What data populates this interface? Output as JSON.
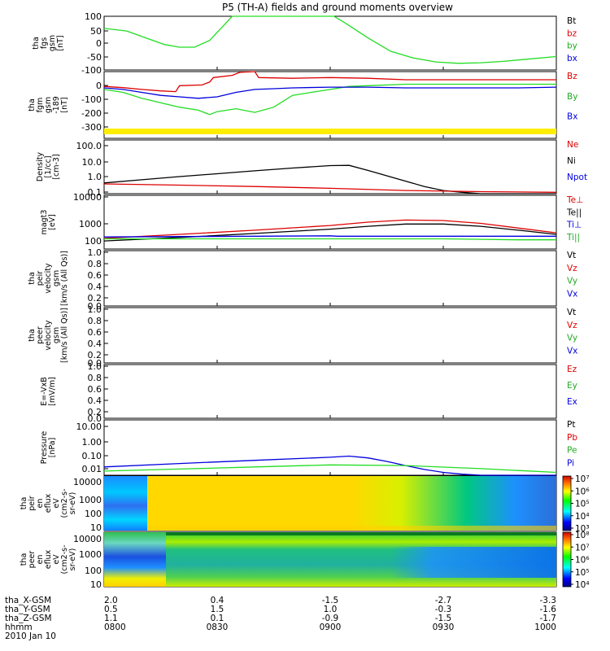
{
  "title": "P5 (TH-A) fields and ground moments overview",
  "colors": {
    "black": "#000000",
    "red": "#dd0000",
    "green": "#22dd22",
    "blue": "#0000dd",
    "yellow": "#ffee00"
  },
  "panels": [
    {
      "id": "fgs",
      "ylabel": [
        "tha",
        "fgs",
        "gsm",
        "[nT]"
      ],
      "yticks": [
        "100",
        "50",
        "0",
        "-50",
        "-100"
      ],
      "legend": [
        {
          "text": "Bt",
          "color": "#000000"
        },
        {
          "text": "bz",
          "color": "#dd0000"
        },
        {
          "text": "by",
          "color": "#22aa22"
        },
        {
          "text": "bx",
          "color": "#0000dd"
        }
      ]
    },
    {
      "id": "fgm",
      "ylabel": [
        "tha",
        "fgm",
        "gsm",
        "-189",
        "[nT]"
      ],
      "yticks": [
        "0",
        "-100",
        "-200",
        "-300"
      ],
      "legend": [
        {
          "text": "Bz",
          "color": "#dd0000"
        },
        {
          "text": "By",
          "color": "#22aa22"
        },
        {
          "text": "Bx",
          "color": "#0000dd"
        }
      ]
    },
    {
      "id": "density",
      "ylabel": [
        "Density",
        "[1/cc]",
        "[cm-3]"
      ],
      "yticks": [
        "100.0",
        "10.0",
        "1.0",
        "0.1"
      ],
      "legend": [
        {
          "text": "Ne",
          "color": "#dd0000"
        },
        {
          "text": "Ni",
          "color": "#000000"
        },
        {
          "text": "Npot",
          "color": "#0000dd"
        }
      ]
    },
    {
      "id": "temp",
      "ylabel": [
        "magt3",
        "[eV]"
      ],
      "yticks": [
        "10000",
        "1000",
        "100"
      ],
      "legend": [
        {
          "text": "Te⊥",
          "color": "#dd0000"
        },
        {
          "text": "Te||",
          "color": "#000000"
        },
        {
          "text": "Ti⊥",
          "color": "#0000dd"
        },
        {
          "text": "Ti||",
          "color": "#22aa22"
        }
      ]
    },
    {
      "id": "peir_vel",
      "ylabel": [
        "tha",
        "peir",
        "velocity",
        "gsm",
        "[km/s (All Qs)]"
      ],
      "yticks": [
        "1.0",
        "0.8",
        "0.6",
        "0.4",
        "0.2",
        "0.0"
      ],
      "legend": [
        {
          "text": "Vt",
          "color": "#000000"
        },
        {
          "text": "Vz",
          "color": "#dd0000"
        },
        {
          "text": "Vy",
          "color": "#22aa22"
        },
        {
          "text": "Vx",
          "color": "#0000dd"
        }
      ]
    },
    {
      "id": "peer_vel",
      "ylabel": [
        "tha",
        "peer",
        "velocity",
        "gsm",
        "[km/s (All Qs)]"
      ],
      "yticks": [
        "1.0",
        "0.8",
        "0.6",
        "0.4",
        "0.2",
        "0.0"
      ],
      "legend": [
        {
          "text": "Vt",
          "color": "#000000"
        },
        {
          "text": "Vz",
          "color": "#dd0000"
        },
        {
          "text": "Vy",
          "color": "#22aa22"
        },
        {
          "text": "Vx",
          "color": "#0000dd"
        }
      ]
    },
    {
      "id": "efield",
      "ylabel": [
        "E=-VxB",
        "[mV/m]"
      ],
      "yticks": [
        "1.0",
        "0.8",
        "0.6",
        "0.4",
        "0.2",
        "0.0"
      ],
      "legend": [
        {
          "text": "Ez",
          "color": "#dd0000"
        },
        {
          "text": "Ey",
          "color": "#22aa22"
        },
        {
          "text": "Ex",
          "color": "#0000dd"
        }
      ]
    },
    {
      "id": "pressure",
      "ylabel": [
        "Pressure",
        "[nPa]"
      ],
      "yticks": [
        "10.00",
        "1.00",
        "0.10",
        "0.01"
      ],
      "legend": [
        {
          "text": "Pt",
          "color": "#000000"
        },
        {
          "text": "Pb",
          "color": "#dd0000"
        },
        {
          "text": "Pe",
          "color": "#22aa22"
        },
        {
          "text": "Pi",
          "color": "#0000dd"
        }
      ]
    },
    {
      "id": "peir_eflux",
      "ylabel": [
        "tha",
        "peir",
        "en",
        "eflux",
        "eV",
        "(cm2-s-",
        "sr-eV)"
      ],
      "yticks": [
        "10000",
        "1000",
        "100",
        "10"
      ],
      "cbar_ticks": [
        "10⁷",
        "10⁶",
        "10⁵",
        "10⁴",
        "10³"
      ]
    },
    {
      "id": "peer_eflux",
      "ylabel": [
        "tha",
        "peer",
        "en",
        "eflux",
        "eV",
        "(cm2-s-",
        "sr-eV)"
      ],
      "yticks": [
        "10000",
        "1000",
        "100",
        "10"
      ],
      "cbar_ticks": [
        "10⁸",
        "10⁷",
        "10⁶",
        "10⁵",
        "10⁴"
      ]
    }
  ],
  "footer": {
    "rows": [
      {
        "label": "tha_X-GSM",
        "values": [
          "2.0",
          "0.4",
          "-1.5",
          "-2.7",
          "-3.3"
        ]
      },
      {
        "label": "tha_Y-GSM",
        "values": [
          "0.5",
          "1.5",
          "1.0",
          "-0.3",
          "-1.6"
        ]
      },
      {
        "label": "tha_Z-GSM",
        "values": [
          "1.1",
          "0.1",
          "-0.9",
          "-1.5",
          "-1.7"
        ]
      },
      {
        "label": "hhmm",
        "values": [
          "0800",
          "0830",
          "0900",
          "0930",
          "1000"
        ]
      }
    ],
    "date": "2010 Jan 10"
  },
  "chart_data": [
    {
      "type": "line",
      "panel": "fgs",
      "ylim": [
        -100,
        100
      ],
      "xlim": [
        0,
        120
      ],
      "xunits": "minutes after 0800",
      "series": [
        {
          "name": "by",
          "color": "#22dd22",
          "x": [
            0,
            6,
            12,
            16,
            20,
            24,
            28,
            32,
            34,
            61,
            64,
            70,
            76,
            82,
            88,
            94,
            100,
            106,
            112,
            120
          ],
          "y": [
            55,
            45,
            15,
            -5,
            -15,
            -15,
            10,
            70,
            110,
            110,
            75,
            20,
            -30,
            -55,
            -70,
            -75,
            -73,
            -68,
            -60,
            -50
          ]
        }
      ]
    },
    {
      "type": "line",
      "panel": "fgm",
      "ylim": [
        -350,
        100
      ],
      "xlim": [
        0,
        120
      ],
      "series": [
        {
          "name": "Bz",
          "color": "#dd0000",
          "x": [
            0,
            5,
            10,
            15,
            19,
            20,
            26,
            28,
            29,
            34,
            36,
            40,
            41,
            50,
            60,
            70,
            80,
            90,
            100,
            110,
            120
          ],
          "y": [
            0,
            -8,
            -20,
            -30,
            -35,
            5,
            10,
            30,
            60,
            75,
            95,
            100,
            60,
            55,
            60,
            55,
            45,
            45,
            45,
            45,
            45
          ]
        },
        {
          "name": "By",
          "color": "#22dd22",
          "x": [
            0,
            5,
            10,
            15,
            20,
            25,
            28,
            30,
            35,
            40,
            45,
            50,
            55,
            60,
            65,
            70,
            80,
            90,
            100,
            110,
            120
          ],
          "y": [
            -20,
            -40,
            -80,
            -110,
            -140,
            -160,
            -190,
            -170,
            -150,
            -175,
            -140,
            -60,
            -40,
            -20,
            0,
            5,
            15,
            15,
            15,
            15,
            15
          ]
        },
        {
          "name": "Bx",
          "color": "#0000dd",
          "x": [
            0,
            5,
            10,
            15,
            20,
            25,
            30,
            35,
            40,
            45,
            50,
            60,
            70,
            80,
            90,
            100,
            110,
            120
          ],
          "y": [
            -10,
            -20,
            -40,
            -60,
            -70,
            -80,
            -70,
            -40,
            -20,
            -15,
            -10,
            -5,
            -5,
            -10,
            -10,
            -10,
            -10,
            -5
          ]
        }
      ]
    },
    {
      "type": "line",
      "panel": "density",
      "yscale": "log",
      "ylim": [
        0.1,
        100
      ],
      "xlim": [
        0,
        120
      ],
      "series": [
        {
          "name": "Ni",
          "color": "#000000",
          "x": [
            0,
            10,
            20,
            30,
            40,
            50,
            60,
            65,
            70,
            75,
            80,
            85,
            90,
            95,
            100,
            110,
            120
          ],
          "y": [
            0.4,
            0.6,
            0.9,
            1.3,
            1.9,
            2.7,
            3.7,
            3.8,
            2.0,
            1.0,
            0.5,
            0.25,
            0.15,
            0.12,
            0.1,
            0.1,
            0.1
          ]
        },
        {
          "name": "Ne",
          "color": "#dd0000",
          "x": [
            0,
            20,
            40,
            60,
            80,
            100,
            120
          ],
          "y": [
            0.35,
            0.3,
            0.25,
            0.2,
            0.15,
            0.13,
            0.12
          ]
        }
      ]
    },
    {
      "type": "line",
      "panel": "temp",
      "yscale": "log",
      "ylim": [
        100,
        10000
      ],
      "xlim": [
        0,
        120
      ],
      "series": [
        {
          "name": "Te⊥",
          "color": "#dd0000",
          "x": [
            0,
            20,
            40,
            60,
            70,
            80,
            90,
            100,
            110,
            120
          ],
          "y": [
            250,
            350,
            500,
            750,
            1000,
            1200,
            1150,
            900,
            600,
            400
          ]
        },
        {
          "name": "Te||",
          "color": "#000000",
          "x": [
            0,
            20,
            40,
            60,
            70,
            80,
            90,
            100,
            110,
            120
          ],
          "y": [
            200,
            270,
            380,
            550,
            700,
            850,
            850,
            700,
            500,
            350
          ]
        },
        {
          "name": "Ti⊥",
          "color": "#0000dd",
          "x": [
            0,
            20,
            40,
            60,
            62,
            70,
            80,
            90,
            100,
            110,
            120
          ],
          "y": [
            280,
            290,
            300,
            310,
            300,
            300,
            300,
            300,
            300,
            300,
            300
          ]
        },
        {
          "name": "Ti||",
          "color": "#22dd22",
          "x": [
            0,
            20,
            40,
            60,
            70,
            80,
            90,
            100,
            110,
            120
          ],
          "y": [
            240,
            240,
            240,
            240,
            240,
            240,
            240,
            230,
            220,
            220
          ]
        }
      ]
    },
    {
      "type": "line",
      "panel": "peir_vel",
      "ylim": [
        0,
        1
      ],
      "series": []
    },
    {
      "type": "line",
      "panel": "peer_vel",
      "ylim": [
        0,
        1
      ],
      "series": []
    },
    {
      "type": "line",
      "panel": "efield",
      "ylim": [
        0,
        1
      ],
      "series": []
    },
    {
      "type": "line",
      "panel": "pressure",
      "yscale": "log",
      "ylim": [
        0.005,
        50
      ],
      "xlim": [
        0,
        120
      ],
      "series": [
        {
          "name": "Pi",
          "color": "#0000dd",
          "x": [
            0,
            20,
            40,
            60,
            65,
            70,
            75,
            80,
            85,
            90,
            95,
            100,
            110,
            120
          ],
          "y": [
            0.02,
            0.035,
            0.06,
            0.1,
            0.12,
            0.09,
            0.05,
            0.025,
            0.013,
            0.008,
            0.006,
            0.005,
            0.005,
            0.005
          ]
        },
        {
          "name": "Pe",
          "color": "#22dd22",
          "x": [
            0,
            20,
            40,
            60,
            80,
            100,
            120
          ],
          "y": [
            0.01,
            0.014,
            0.02,
            0.028,
            0.025,
            0.015,
            0.008
          ]
        }
      ]
    },
    {
      "type": "heatmap",
      "panel": "peir_eflux",
      "yscale": "log",
      "ylim": [
        10,
        20000
      ],
      "zscale": "log",
      "zlim": [
        1000,
        10000000
      ]
    },
    {
      "type": "heatmap",
      "panel": "peer_eflux",
      "yscale": "log",
      "ylim": [
        10,
        20000
      ],
      "zscale": "log",
      "zlim": [
        10000,
        100000000
      ]
    }
  ]
}
